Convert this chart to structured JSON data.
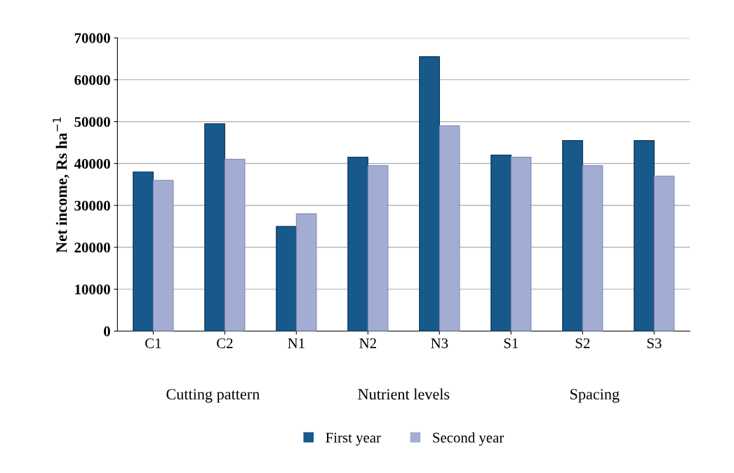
{
  "chart_data": {
    "type": "bar",
    "ylabel": "Net income, Rs ha$^{−1}$",
    "categories": [
      "C1",
      "C2",
      "N1",
      "N2",
      "N3",
      "S1",
      "S2",
      "S3"
    ],
    "series": [
      {
        "name": "First year",
        "color": "#17598b",
        "values": [
          38000,
          49500,
          25000,
          41500,
          65500,
          42000,
          45500,
          45500
        ]
      },
      {
        "name": "Second year",
        "color": "#a3acd3",
        "values": [
          36000,
          41000,
          28000,
          39500,
          49000,
          41500,
          39500,
          37000
        ]
      }
    ],
    "ylim": [
      0,
      70000
    ],
    "yticks": [
      0,
      10000,
      20000,
      30000,
      40000,
      50000,
      60000,
      70000
    ],
    "grid": "y",
    "legend": "bottom",
    "annotations": [
      "Cutting pattern",
      "Nutrient levels",
      "Spacing"
    ]
  }
}
